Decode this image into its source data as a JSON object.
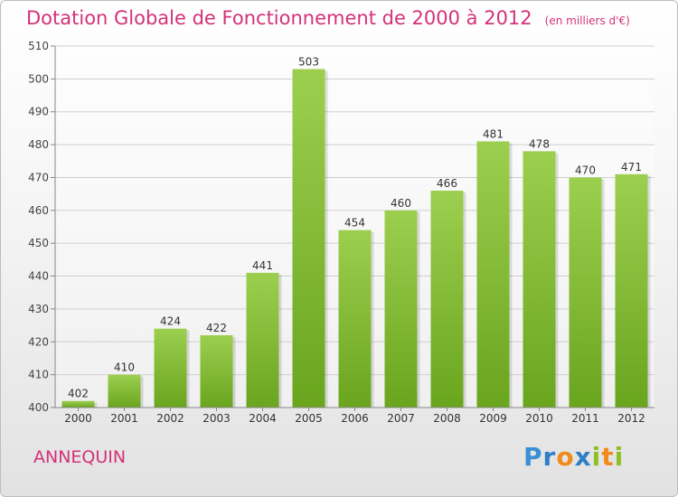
{
  "header": {
    "title": "Dotation Globale de Fonctionnement de 2000 à 2012",
    "subtitle": "(en milliers d'€)"
  },
  "footer": {
    "commune": "ANNEQUIN",
    "logo_letters": [
      "P",
      "r",
      "o",
      "x",
      "i",
      "t",
      "i"
    ]
  },
  "chart_data": {
    "type": "bar",
    "title": "Dotation Globale de Fonctionnement de 2000 à 2012",
    "subtitle": "(en milliers d'€)",
    "categories": [
      "2000",
      "2001",
      "2002",
      "2003",
      "2004",
      "2005",
      "2006",
      "2007",
      "2008",
      "2009",
      "2010",
      "2011",
      "2012"
    ],
    "values": [
      402,
      410,
      424,
      422,
      441,
      503,
      454,
      460,
      466,
      481,
      478,
      470,
      471
    ],
    "ylim": [
      400,
      510
    ],
    "yticks": [
      400,
      410,
      420,
      430,
      440,
      450,
      460,
      470,
      480,
      490,
      500,
      510
    ],
    "grid": true,
    "bar_color_top": "#9ccf4f",
    "bar_color_bottom": "#6aa51e",
    "title_color": "#d4327a"
  }
}
